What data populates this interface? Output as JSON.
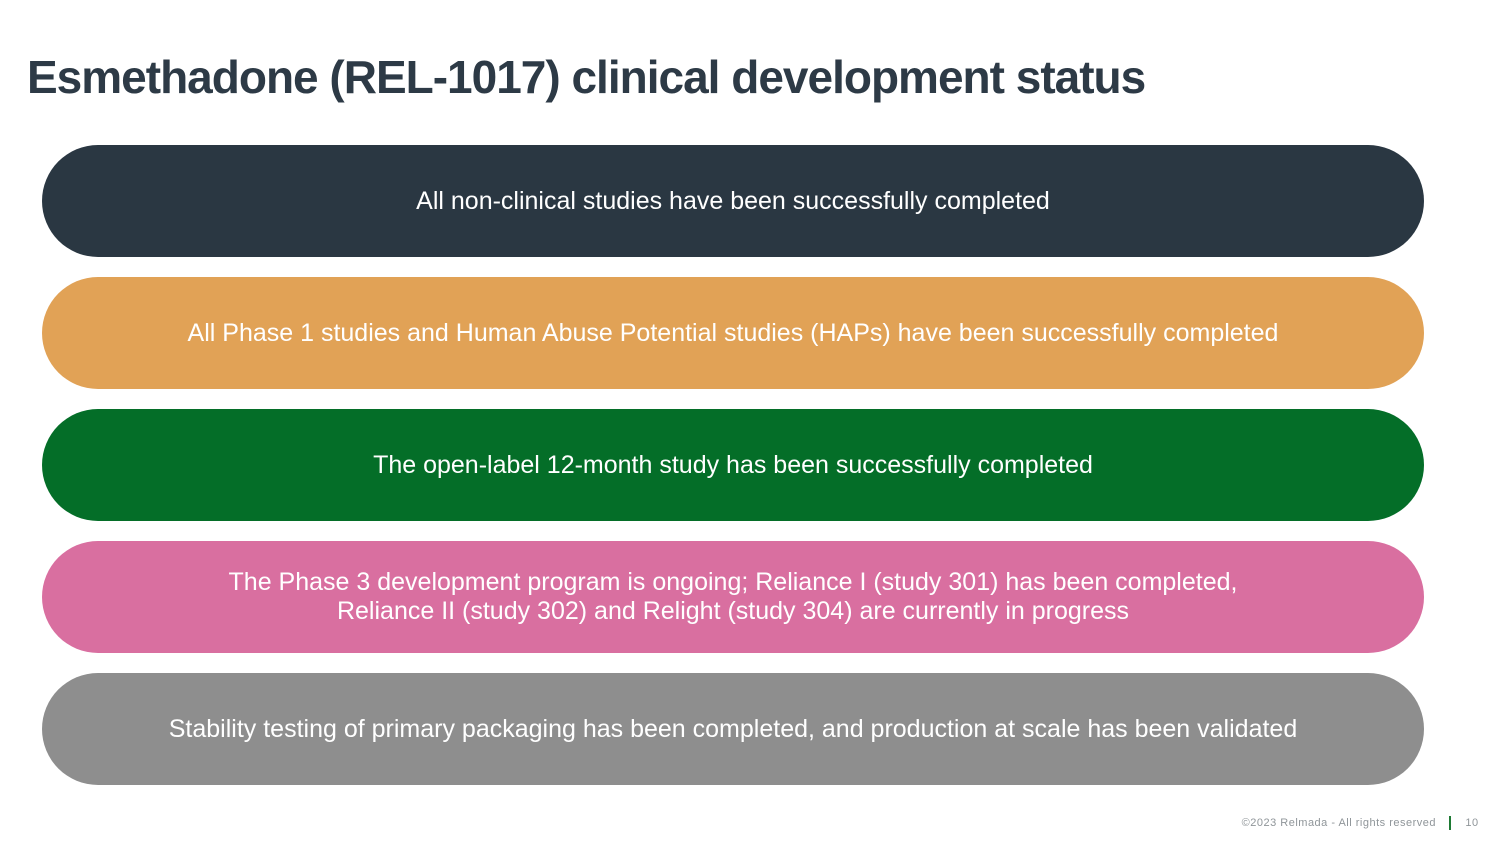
{
  "slide": {
    "title": "Esmethadone (REL-1017) clinical development status",
    "title_color": "#2D3A46",
    "banners": [
      {
        "text": "All non-clinical studies have been successfully completed",
        "color": "#2A3742"
      },
      {
        "text": "All Phase 1 studies and Human Abuse Potential studies (HAPs) have been successfully completed",
        "color": "#E1A256"
      },
      {
        "text": "The open-label 12-month study has been successfully completed",
        "color": "#046E28"
      },
      {
        "text": "The Phase 3 development program is ongoing; Reliance I (study 301) has been completed,\nReliance II (study 302) and Relight (study 304) are currently in progress",
        "color": "#D96FA0"
      },
      {
        "text": "Stability testing of primary packaging has been completed, and production at scale has been validated",
        "color": "#8E8E8E"
      }
    ],
    "footer": {
      "copyright": "©2023 Relmada - All rights reserved",
      "page_number": "10",
      "divider_color": "#1E7A34",
      "text_color": "#8F9599"
    }
  }
}
